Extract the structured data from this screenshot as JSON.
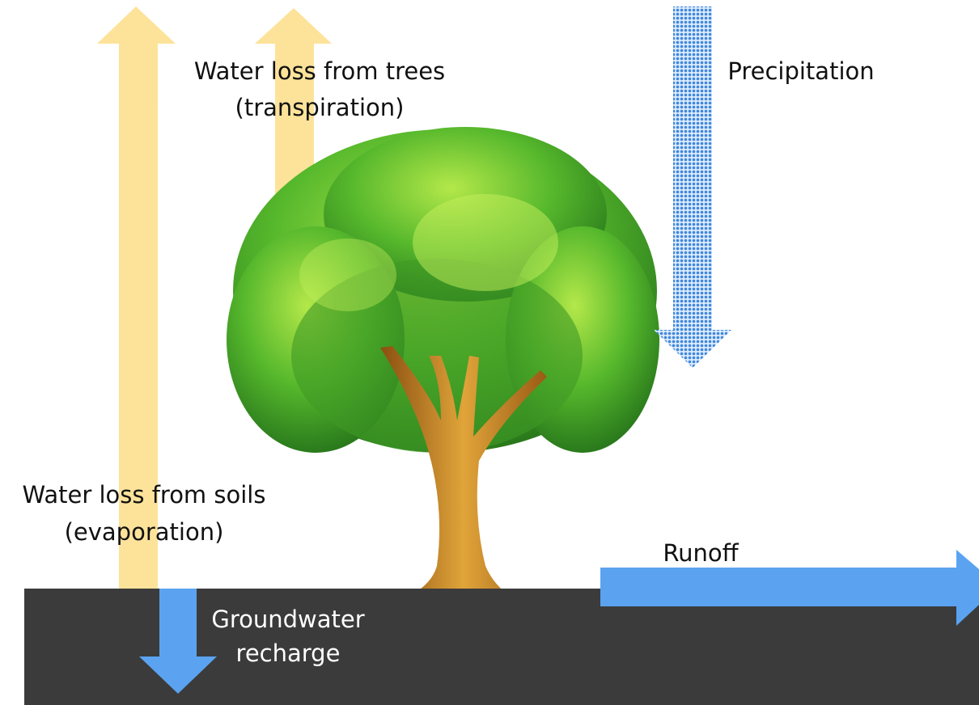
{
  "transpiration": {
    "lines": [
      "Water loss from trees",
      "(transpiration)"
    ]
  },
  "precipitation": {
    "lines": [
      "Precipitation"
    ]
  },
  "evaporation": {
    "lines": [
      "Water loss from soils",
      "(evaporation)"
    ]
  },
  "runoff": {
    "lines": [
      "Runoff"
    ]
  },
  "groundwater_recharge": {
    "lines": [
      "Groundwater",
      "recharge"
    ]
  }
}
